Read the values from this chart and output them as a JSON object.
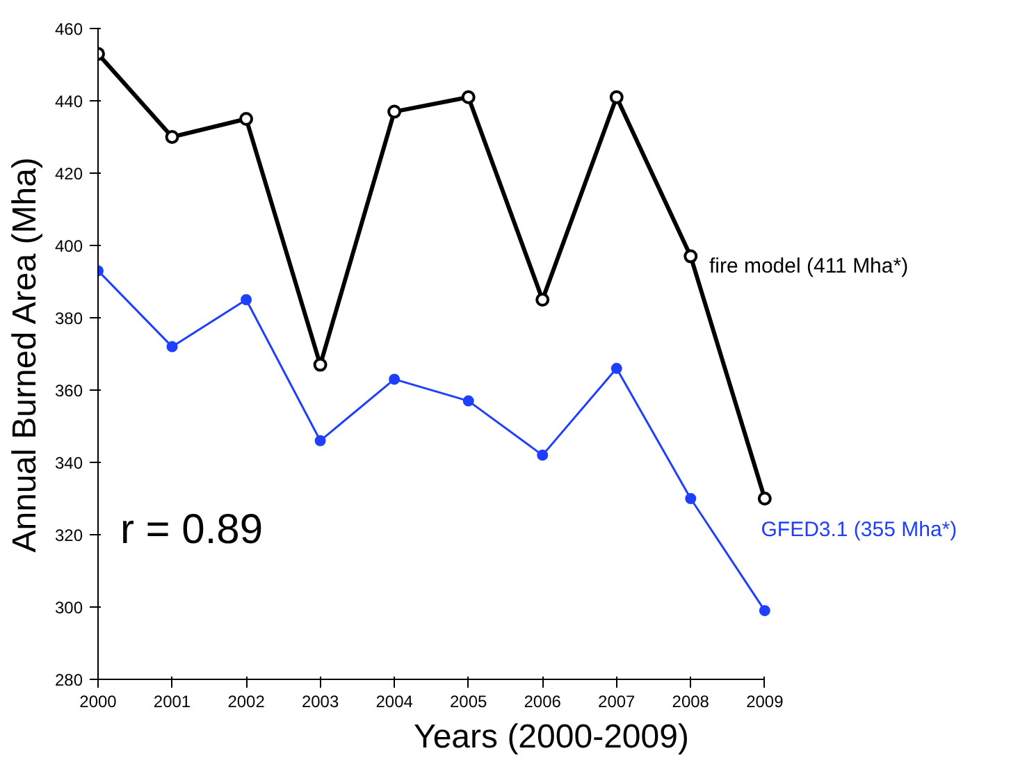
{
  "chart_data": {
    "type": "line",
    "xlabel": "Years (2000-2009)",
    "ylabel": "Annual Burned Area (Mha)",
    "x": [
      2000,
      2001,
      2002,
      2003,
      2004,
      2005,
      2006,
      2007,
      2008,
      2009
    ],
    "series": [
      {
        "name": "fire model (411 Mha*)",
        "color": "#000000",
        "values": [
          453,
          430,
          435,
          367,
          437,
          441,
          385,
          441,
          397,
          330
        ]
      },
      {
        "name": "GFED3.1 (355 Mha*)",
        "color": "#1f3fff",
        "values": [
          393,
          372,
          385,
          346,
          363,
          357,
          342,
          366,
          330,
          299
        ]
      }
    ],
    "xlim": [
      2000,
      2009
    ],
    "ylim": [
      280,
      460
    ],
    "xticks": [
      2000,
      2001,
      2002,
      2003,
      2004,
      2005,
      2006,
      2007,
      2008,
      2009
    ],
    "yticks": [
      280,
      300,
      320,
      340,
      360,
      380,
      400,
      420,
      440,
      460
    ],
    "annotations": [
      "r = 0.89"
    ],
    "grid": false,
    "marker": "circle",
    "line_style": "solid"
  }
}
